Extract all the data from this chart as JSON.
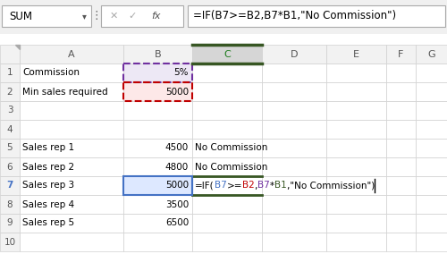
{
  "formula_bar": {
    "name_box": "SUM",
    "formula": "=IF(B7>=B2,B7*B1,\"No Commission\")"
  },
  "col_names": [
    "",
    "A",
    "B",
    "C",
    "D",
    "E",
    "F",
    "G"
  ],
  "cells": {
    "A1": {
      "text": "Commission",
      "align": "left",
      "color": "#000000"
    },
    "B1": {
      "text": "5%",
      "align": "right",
      "color": "#000000",
      "bg": "#ede8f5"
    },
    "A2": {
      "text": "Min sales required",
      "align": "left",
      "color": "#000000"
    },
    "B2": {
      "text": "5000",
      "align": "right",
      "color": "#000000",
      "bg": "#fde8e8"
    },
    "A5": {
      "text": "Sales rep 1",
      "align": "left",
      "color": "#000000"
    },
    "B5": {
      "text": "4500",
      "align": "right",
      "color": "#000000"
    },
    "C5": {
      "text": "No Commission",
      "align": "left",
      "color": "#000000"
    },
    "A6": {
      "text": "Sales rep 2",
      "align": "left",
      "color": "#000000"
    },
    "B6": {
      "text": "4800",
      "align": "right",
      "color": "#000000"
    },
    "C6": {
      "text": "No Commission",
      "align": "left",
      "color": "#000000"
    },
    "A7": {
      "text": "Sales rep 3",
      "align": "left",
      "color": "#000000"
    },
    "B7": {
      "text": "5000",
      "align": "right",
      "color": "#000000",
      "bg": "#dde8ff"
    },
    "A8": {
      "text": "Sales rep 4",
      "align": "left",
      "color": "#000000"
    },
    "B8": {
      "text": "3500",
      "align": "right",
      "color": "#000000"
    },
    "A9": {
      "text": "Sales rep 5",
      "align": "left",
      "color": "#000000"
    },
    "B9": {
      "text": "6500",
      "align": "right",
      "color": "#000000"
    }
  },
  "formula_parts": [
    {
      "text": "=IF(",
      "color": "#000000"
    },
    {
      "text": "B7",
      "color": "#4472c4"
    },
    {
      "text": ">=",
      "color": "#000000"
    },
    {
      "text": "B2",
      "color": "#c00000"
    },
    {
      "text": ",",
      "color": "#000000"
    },
    {
      "text": "B7",
      "color": "#7030a0"
    },
    {
      "text": "*",
      "color": "#000000"
    },
    {
      "text": "B1",
      "color": "#375623"
    },
    {
      "text": ",\"No Commission\")",
      "color": "#000000"
    }
  ],
  "highlight_B1_color": "#7030a0",
  "highlight_B2_color": "#c00000",
  "highlight_B7_color": "#4472c4",
  "highlight_C7_top_color": "#375623",
  "active_col_C_bg": "#d6d6d6",
  "grid_color": "#d0d0d0",
  "header_bg": "#f2f2f2",
  "row7_header_color": "#4472c4"
}
